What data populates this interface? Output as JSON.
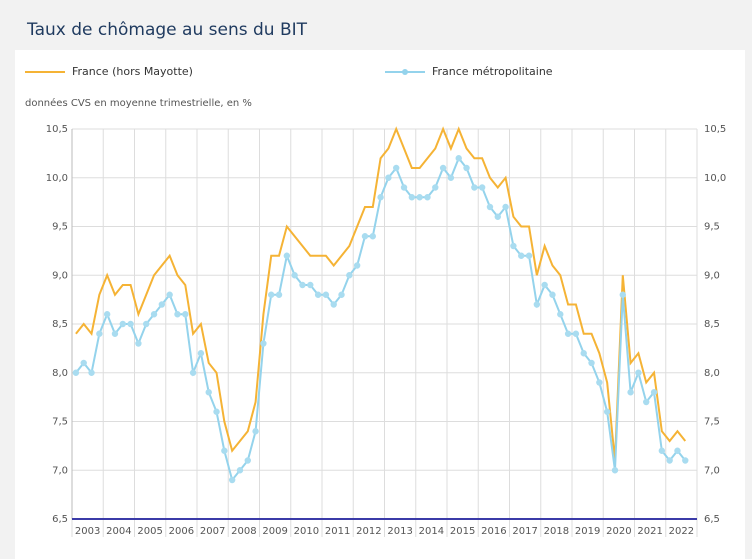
{
  "chart_data": {
    "type": "line",
    "title": "Taux de chômage au sens du BIT",
    "subtitle": "données CVS en moyenne trimestrielle, en %",
    "year_labels": [
      "2003",
      "2004",
      "2005",
      "2006",
      "2007",
      "2008",
      "2009",
      "2010",
      "2011",
      "2012",
      "2013",
      "2014",
      "2015",
      "2016",
      "2017",
      "2018",
      "2019",
      "2020",
      "2021",
      "2022"
    ],
    "ylim": [
      6.5,
      10.5
    ],
    "yticks": [
      {
        "value": 6.5,
        "label": "6,5"
      },
      {
        "value": 7.0,
        "label": "7,0"
      },
      {
        "value": 7.5,
        "label": "7,5"
      },
      {
        "value": 8.0,
        "label": "8,0"
      },
      {
        "value": 8.5,
        "label": "8,5"
      },
      {
        "value": 9.0,
        "label": "9,0"
      },
      {
        "value": 9.5,
        "label": "9,5"
      },
      {
        "value": 10.0,
        "label": "10,0"
      },
      {
        "value": 10.5,
        "label": "10,5"
      }
    ],
    "grid": true,
    "series": [
      {
        "name": "France (hors Mayotte)",
        "color": "#f5b335",
        "markers": false,
        "values": [
          8.4,
          8.5,
          8.4,
          8.8,
          9.0,
          8.8,
          8.9,
          8.9,
          8.6,
          8.8,
          9.0,
          9.1,
          9.2,
          9.0,
          8.9,
          8.4,
          8.5,
          8.1,
          8.0,
          7.5,
          7.2,
          7.3,
          7.4,
          7.7,
          8.6,
          9.2,
          9.2,
          9.5,
          9.4,
          9.3,
          9.2,
          9.2,
          9.2,
          9.1,
          9.2,
          9.3,
          9.5,
          9.7,
          9.7,
          10.2,
          10.3,
          10.5,
          10.3,
          10.1,
          10.1,
          10.2,
          10.3,
          10.5,
          10.3,
          10.5,
          10.3,
          10.2,
          10.2,
          10.0,
          9.9,
          10.0,
          9.6,
          9.5,
          9.5,
          9.0,
          9.3,
          9.1,
          9.0,
          8.7,
          8.7,
          8.4,
          8.4,
          8.2,
          7.9,
          7.1,
          9.0,
          8.1,
          8.2,
          7.9,
          8.0,
          7.4,
          7.3,
          7.4,
          7.3,
          null
        ]
      },
      {
        "name": "France métropolitaine",
        "color": "#94d3ec",
        "markers": true,
        "values": [
          8.0,
          8.1,
          8.0,
          8.4,
          8.6,
          8.4,
          8.5,
          8.5,
          8.3,
          8.5,
          8.6,
          8.7,
          8.8,
          8.6,
          8.6,
          8.0,
          8.2,
          7.8,
          7.6,
          7.2,
          6.9,
          7.0,
          7.1,
          7.4,
          8.3,
          8.8,
          8.8,
          9.2,
          9.0,
          8.9,
          8.9,
          8.8,
          8.8,
          8.7,
          8.8,
          9.0,
          9.1,
          9.4,
          9.4,
          9.8,
          10.0,
          10.1,
          9.9,
          9.8,
          9.8,
          9.8,
          9.9,
          10.1,
          10.0,
          10.2,
          10.1,
          9.9,
          9.9,
          9.7,
          9.6,
          9.7,
          9.3,
          9.2,
          9.2,
          8.7,
          8.9,
          8.8,
          8.6,
          8.4,
          8.4,
          8.2,
          8.1,
          7.9,
          7.6,
          7.0,
          8.8,
          7.8,
          8.0,
          7.7,
          7.8,
          7.2,
          7.1,
          7.2,
          7.1,
          null
        ]
      }
    ]
  }
}
